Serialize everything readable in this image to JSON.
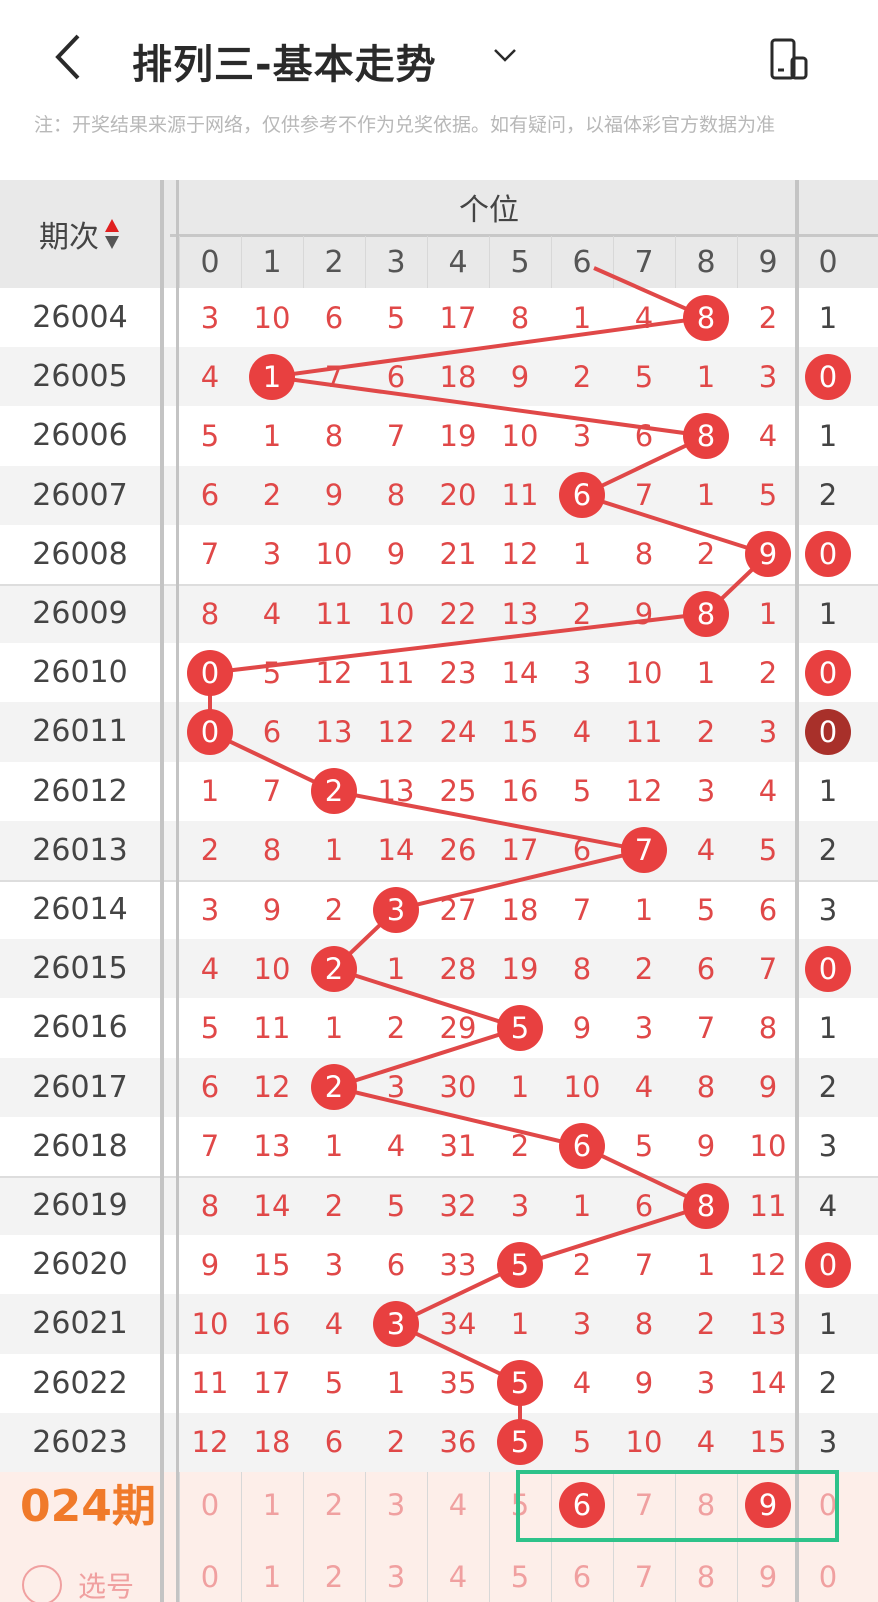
{
  "header": {
    "title": "排列三-基本走势",
    "back_icon": "chevron-left-icon",
    "dropdown_icon": "chevron-down-icon",
    "rotate_icon": "screen-rotate-icon"
  },
  "notice": "注：开奖结果来源于网络，仅供参考不作为兑奖依据。如有疑问，以福体彩官方数据为准",
  "table": {
    "period_header": "期次",
    "group_header": "个位",
    "digit_headers": [
      "0",
      "1",
      "2",
      "3",
      "4",
      "5",
      "6",
      "7",
      "8",
      "9"
    ],
    "next_group_first_header": "0",
    "colors": {
      "ball": "#e84040",
      "ball_dark": "#a8302a",
      "number": "#e04848",
      "line": "#e04848",
      "highlight_box": "#2ec28a",
      "predict_label": "#f07a2a"
    },
    "rows": [
      {
        "period": "26004",
        "cells": [
          "3",
          "10",
          "6",
          "5",
          "17",
          "8",
          "1",
          "4",
          "8",
          "2"
        ],
        "hit": 8,
        "next": "1",
        "next_hit": false
      },
      {
        "period": "26005",
        "cells": [
          "4",
          "1",
          "7",
          "6",
          "18",
          "9",
          "2",
          "5",
          "1",
          "3"
        ],
        "hit": 1,
        "next": "0",
        "next_hit": true
      },
      {
        "period": "26006",
        "cells": [
          "5",
          "1",
          "8",
          "7",
          "19",
          "10",
          "3",
          "6",
          "8",
          "4"
        ],
        "hit": 8,
        "next": "1",
        "next_hit": false
      },
      {
        "period": "26007",
        "cells": [
          "6",
          "2",
          "9",
          "8",
          "20",
          "11",
          "6",
          "7",
          "1",
          "5"
        ],
        "hit": 6,
        "next": "2",
        "next_hit": false
      },
      {
        "period": "26008",
        "cells": [
          "7",
          "3",
          "10",
          "9",
          "21",
          "12",
          "1",
          "8",
          "2",
          "9"
        ],
        "hit": 9,
        "next": "0",
        "next_hit": true
      },
      {
        "period": "26009",
        "cells": [
          "8",
          "4",
          "11",
          "10",
          "22",
          "13",
          "2",
          "9",
          "8",
          "1"
        ],
        "hit": 8,
        "next": "1",
        "next_hit": false
      },
      {
        "period": "26010",
        "cells": [
          "0",
          "5",
          "12",
          "11",
          "23",
          "14",
          "3",
          "10",
          "1",
          "2"
        ],
        "hit": 0,
        "next": "0",
        "next_hit": true
      },
      {
        "period": "26011",
        "cells": [
          "0",
          "6",
          "13",
          "12",
          "24",
          "15",
          "4",
          "11",
          "2",
          "3"
        ],
        "hit": 0,
        "next": "0",
        "next_hit": true,
        "next_dark": true
      },
      {
        "period": "26012",
        "cells": [
          "1",
          "7",
          "2",
          "13",
          "25",
          "16",
          "5",
          "12",
          "3",
          "4"
        ],
        "hit": 2,
        "next": "1",
        "next_hit": false
      },
      {
        "period": "26013",
        "cells": [
          "2",
          "8",
          "1",
          "14",
          "26",
          "17",
          "6",
          "7",
          "4",
          "5"
        ],
        "hit": 7,
        "next": "2",
        "next_hit": false
      },
      {
        "period": "26014",
        "cells": [
          "3",
          "9",
          "2",
          "3",
          "27",
          "18",
          "7",
          "1",
          "5",
          "6"
        ],
        "hit": 3,
        "next": "3",
        "next_hit": false
      },
      {
        "period": "26015",
        "cells": [
          "4",
          "10",
          "2",
          "1",
          "28",
          "19",
          "8",
          "2",
          "6",
          "7"
        ],
        "hit": 2,
        "next": "0",
        "next_hit": true
      },
      {
        "period": "26016",
        "cells": [
          "5",
          "11",
          "1",
          "2",
          "29",
          "5",
          "9",
          "3",
          "7",
          "8"
        ],
        "hit": 5,
        "next": "1",
        "next_hit": false
      },
      {
        "period": "26017",
        "cells": [
          "6",
          "12",
          "2",
          "3",
          "30",
          "1",
          "10",
          "4",
          "8",
          "9"
        ],
        "hit": 2,
        "next": "2",
        "next_hit": false
      },
      {
        "period": "26018",
        "cells": [
          "7",
          "13",
          "1",
          "4",
          "31",
          "2",
          "6",
          "5",
          "9",
          "10"
        ],
        "hit": 6,
        "next": "3",
        "next_hit": false
      },
      {
        "period": "26019",
        "cells": [
          "8",
          "14",
          "2",
          "5",
          "32",
          "3",
          "1",
          "6",
          "8",
          "11"
        ],
        "hit": 8,
        "next": "4",
        "next_hit": false
      },
      {
        "period": "26020",
        "cells": [
          "9",
          "15",
          "3",
          "6",
          "33",
          "5",
          "2",
          "7",
          "1",
          "12"
        ],
        "hit": 5,
        "next": "0",
        "next_hit": true
      },
      {
        "period": "26021",
        "cells": [
          "10",
          "16",
          "4",
          "3",
          "34",
          "1",
          "3",
          "8",
          "2",
          "13"
        ],
        "hit": 3,
        "next": "1",
        "next_hit": false
      },
      {
        "period": "26022",
        "cells": [
          "11",
          "17",
          "5",
          "1",
          "35",
          "5",
          "4",
          "9",
          "3",
          "14"
        ],
        "hit": 5,
        "next": "2",
        "next_hit": false
      },
      {
        "period": "26023",
        "cells": [
          "12",
          "18",
          "6",
          "2",
          "36",
          "5",
          "5",
          "10",
          "4",
          "15"
        ],
        "hit": 5,
        "next": "3",
        "next_hit": false
      }
    ],
    "predict": {
      "label": "024期",
      "digits": [
        "0",
        "1",
        "2",
        "3",
        "4",
        "5",
        "6",
        "7",
        "8",
        "9"
      ],
      "selected": [
        6,
        9
      ],
      "next": "0"
    },
    "select_row": {
      "label": "选号",
      "digits": [
        "0",
        "1",
        "2",
        "3",
        "4",
        "5",
        "6",
        "7",
        "8",
        "9"
      ],
      "next": "0"
    }
  }
}
